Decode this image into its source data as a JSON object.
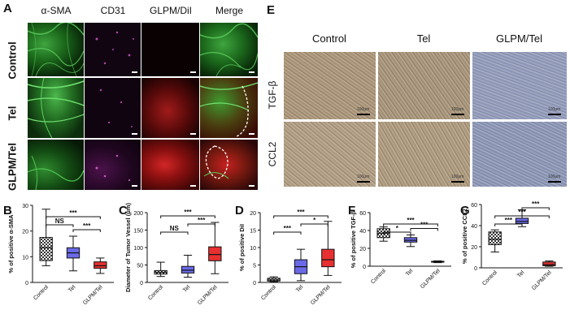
{
  "panel_a": {
    "letter": "A",
    "columns": [
      "α-SMA",
      "CD31",
      "GLPM/DiI",
      "Merge"
    ],
    "rows": [
      "Control",
      "Tel",
      "GLPM/Tel"
    ]
  },
  "panel_e": {
    "letter": "E",
    "columns": [
      "Control",
      "Tel",
      "GLPM/Tel"
    ],
    "rows": [
      "TGF-β",
      "CCL2"
    ],
    "scale_texts": [
      "100μm",
      "100μm",
      "100μm",
      "100μm",
      "100μm",
      "100μm"
    ]
  },
  "colors": {
    "control_box": "#d9d9d9",
    "tel_box": "#6a6ae8",
    "glpm_box": "#e83030"
  },
  "chart_data": [
    {
      "letter": "B",
      "type": "box",
      "categories": [
        "Control",
        "Tel",
        "GLPM/Tel"
      ],
      "ylabel": "% of positive α-SMA",
      "ylim": [
        0,
        30
      ],
      "yticks": [
        0,
        10,
        20,
        30
      ],
      "boxes": [
        {
          "min": 6.5,
          "q1": 8.5,
          "median": 13.5,
          "q3": 17.5,
          "max": 28.5
        },
        {
          "min": 4.5,
          "q1": 9.5,
          "median": 11.5,
          "q3": 13.5,
          "max": 18
        },
        {
          "min": 3.5,
          "q1": 5.5,
          "median": 6.5,
          "q3": 8,
          "max": 9.5
        }
      ],
      "significance": [
        {
          "from": 0,
          "to": 1,
          "label": "NS",
          "level": 0
        },
        {
          "from": 0,
          "to": 2,
          "label": "***",
          "level": 1
        },
        {
          "from": 1,
          "to": 2,
          "label": "***",
          "level": -1
        }
      ]
    },
    {
      "letter": "C",
      "type": "box",
      "categories": [
        "Control",
        "Tel",
        "GLPM/Tel"
      ],
      "ylabel": "Diameter of Tumor Vessel (μm)",
      "ylim": [
        0,
        200
      ],
      "yticks": [
        0,
        50,
        100,
        150,
        200
      ],
      "boxes": [
        {
          "min": 17,
          "q1": 24,
          "median": 29,
          "q3": 34,
          "max": 58
        },
        {
          "min": 15,
          "q1": 27,
          "median": 35,
          "q3": 46,
          "max": 78
        },
        {
          "min": 25,
          "q1": 62,
          "median": 80,
          "q3": 102,
          "max": 172
        }
      ],
      "significance": [
        {
          "from": 0,
          "to": 1,
          "label": "NS",
          "level": 0
        },
        {
          "from": 0,
          "to": 2,
          "label": "***",
          "level": 2
        },
        {
          "from": 1,
          "to": 2,
          "label": "***",
          "level": 1
        }
      ]
    },
    {
      "letter": "D",
      "type": "box",
      "categories": [
        "Control",
        "Tel",
        "GLPM/Tel"
      ],
      "ylabel": "% of positive DiI",
      "ylim": [
        0,
        20
      ],
      "yticks": [
        0,
        5,
        10,
        15,
        20
      ],
      "boxes": [
        {
          "min": 0.2,
          "q1": 0.4,
          "median": 0.7,
          "q3": 1.2,
          "max": 1.6
        },
        {
          "min": 0.5,
          "q1": 2.5,
          "median": 4.5,
          "q3": 6.5,
          "max": 9.5
        },
        {
          "min": 2,
          "q1": 4.5,
          "median": 6.5,
          "q3": 9.5,
          "max": 17.5
        }
      ],
      "significance": [
        {
          "from": 0,
          "to": 1,
          "label": "***",
          "level": 0
        },
        {
          "from": 0,
          "to": 2,
          "label": "***",
          "level": 2
        },
        {
          "from": 1,
          "to": 2,
          "label": "*",
          "level": 1
        }
      ]
    },
    {
      "letter": "F",
      "type": "box",
      "categories": [
        "Control",
        "Tel",
        "GLPM/Tel"
      ],
      "ylabel": "% of positive TGF-β",
      "ylim": [
        0,
        60
      ],
      "yticks": [
        0,
        20,
        40,
        60
      ],
      "boxes": [
        {
          "min": 28,
          "q1": 32,
          "median": 37,
          "q3": 42,
          "max": 44
        },
        {
          "min": 22,
          "q1": 27,
          "median": 29,
          "q3": 32,
          "max": 35
        },
        {
          "min": 4,
          "q1": 4.5,
          "median": 5,
          "q3": 5.5,
          "max": 6
        }
      ],
      "significance": [
        {
          "from": 0,
          "to": 1,
          "label": "*",
          "level": 0
        },
        {
          "from": 0,
          "to": 2,
          "label": "***",
          "level": 1
        },
        {
          "from": 1,
          "to": 2,
          "label": "***",
          "level": -1
        }
      ]
    },
    {
      "letter": "G",
      "type": "box",
      "categories": [
        "Control",
        "Tel",
        "GLPM/Tel"
      ],
      "ylabel": "% of positive CCL2",
      "ylim": [
        0,
        60
      ],
      "yticks": [
        0,
        20,
        40,
        60
      ],
      "boxes": [
        {
          "min": 15,
          "q1": 22,
          "median": 27,
          "q3": 34,
          "max": 36
        },
        {
          "min": 39,
          "q1": 42,
          "median": 44,
          "q3": 47,
          "max": 55
        },
        {
          "min": 1.5,
          "q1": 2,
          "median": 3,
          "q3": 5.5,
          "max": 6.5
        }
      ],
      "significance": [
        {
          "from": 0,
          "to": 1,
          "label": "***",
          "level": 0
        },
        {
          "from": 0,
          "to": 2,
          "label": "***",
          "level": 1
        },
        {
          "from": 1,
          "to": 2,
          "label": "***",
          "level": 2
        }
      ]
    }
  ]
}
